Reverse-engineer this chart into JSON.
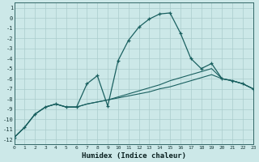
{
  "xlabel": "Humidex (Indice chaleur)",
  "bg_color": "#cce8e8",
  "grid_color": "#aacccc",
  "line_color": "#1a6060",
  "xlim": [
    0,
    23
  ],
  "ylim": [
    -12.5,
    1.5
  ],
  "yticks": [
    1,
    0,
    -1,
    -2,
    -3,
    -4,
    -5,
    -6,
    -7,
    -8,
    -9,
    -10,
    -11,
    -12
  ],
  "xticks": [
    0,
    1,
    2,
    3,
    4,
    5,
    6,
    7,
    8,
    9,
    10,
    11,
    12,
    13,
    14,
    15,
    16,
    17,
    18,
    19,
    20,
    21,
    22,
    23
  ],
  "y_curve": [
    -11.8,
    -10.8,
    -9.5,
    -8.8,
    -8.5,
    -8.8,
    -8.8,
    -6.5,
    -5.7,
    -8.7,
    -4.2,
    -2.2,
    -0.9,
    -0.1,
    0.4,
    0.5,
    -1.5,
    -4.0,
    -5.0,
    -4.5,
    -6.0,
    -6.2,
    -6.5,
    -7.0
  ],
  "y_lin1": [
    -11.8,
    -10.8,
    -9.5,
    -8.8,
    -8.5,
    -8.8,
    -8.8,
    -8.5,
    -8.3,
    -8.1,
    -7.8,
    -7.5,
    -7.2,
    -6.9,
    -6.6,
    -6.2,
    -5.9,
    -5.6,
    -5.3,
    -5.0,
    -6.0,
    -6.2,
    -6.5,
    -7.0
  ],
  "y_lin2": [
    -11.8,
    -10.8,
    -9.5,
    -8.8,
    -8.5,
    -8.8,
    -8.8,
    -8.5,
    -8.3,
    -8.1,
    -7.9,
    -7.7,
    -7.5,
    -7.3,
    -7.0,
    -6.8,
    -6.5,
    -6.2,
    -5.9,
    -5.6,
    -6.0,
    -6.2,
    -6.5,
    -7.0
  ]
}
